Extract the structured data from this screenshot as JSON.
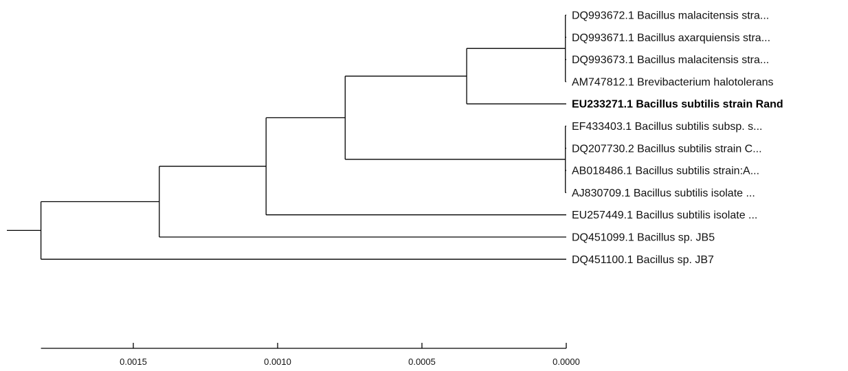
{
  "tree": {
    "leaves": [
      {
        "id": "L1",
        "label": "DQ993672.1 Bacillus malacitensis stra...",
        "highlight": false
      },
      {
        "id": "L2",
        "label": "DQ993671.1 Bacillus axarquiensis stra...",
        "highlight": false
      },
      {
        "id": "L3",
        "label": "DQ993673.1 Bacillus malacitensis stra...",
        "highlight": false
      },
      {
        "id": "L4",
        "label": "AM747812.1 Brevibacterium halotolerans",
        "highlight": false
      },
      {
        "id": "L5",
        "label": "EU233271.1 Bacillus subtilis strain Rand",
        "highlight": true
      },
      {
        "id": "L6",
        "label": "EF433403.1 Bacillus subtilis subsp. s...",
        "highlight": false
      },
      {
        "id": "L7",
        "label": "DQ207730.2 Bacillus subtilis strain C...",
        "highlight": false
      },
      {
        "id": "L8",
        "label": "AB018486.1 Bacillus subtilis strain:A...",
        "highlight": false
      },
      {
        "id": "L9",
        "label": "AJ830709.1 Bacillus subtilis isolate ...",
        "highlight": false
      },
      {
        "id": "L10",
        "label": "EU257449.1 Bacillus subtilis isolate ...",
        "highlight": false
      },
      {
        "id": "L11",
        "label": "DQ451099.1 Bacillus sp. JB5",
        "highlight": false
      },
      {
        "id": "L12",
        "label": "DQ451100.1 Bacillus sp. JB7",
        "highlight": false
      }
    ],
    "nodes": [
      {
        "id": "N_root",
        "dist": 0.00182,
        "children": [
          "N_a",
          "L12"
        ],
        "root_stem": true
      },
      {
        "id": "N_a",
        "dist": 0.00141,
        "children": [
          "N_b",
          "L11"
        ]
      },
      {
        "id": "N_b",
        "dist": 0.00104,
        "children": [
          "N_c",
          "L10"
        ]
      },
      {
        "id": "N_c",
        "dist": 0.000766,
        "children": [
          "N_d",
          "N_g"
        ]
      },
      {
        "id": "N_d",
        "dist": 0.000345,
        "children": [
          "N_e",
          "L5"
        ]
      },
      {
        "id": "N_e",
        "dist": 3e-06,
        "children": [
          "L1",
          "L2",
          "L3",
          "L4"
        ]
      },
      {
        "id": "N_g",
        "dist": 3e-06,
        "children": [
          "L6",
          "L7",
          "L8",
          "L9"
        ]
      }
    ]
  },
  "scale": {
    "ticks": [
      {
        "value": 0.0015,
        "label": "0.0015"
      },
      {
        "value": 0.001,
        "label": "0.0010"
      },
      {
        "value": 0.0005,
        "label": "0.0005"
      },
      {
        "value": 0.0,
        "label": "0.0000"
      }
    ],
    "range": [
      0.00182,
      0.0
    ]
  }
}
